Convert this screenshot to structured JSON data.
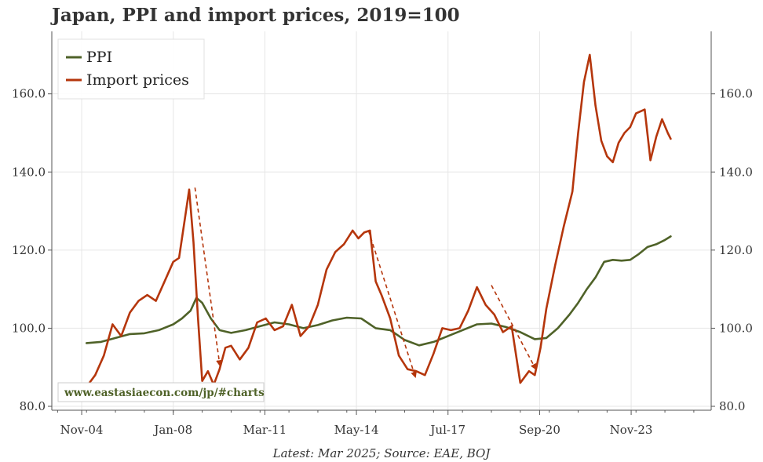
{
  "title": "Japan, PPI and import prices, 2019=100",
  "footer": "Latest: Mar 2025; Source: EAE, BOJ",
  "watermark": "www.eastasiaecon.com/jp/#charts",
  "colors": {
    "ppi": "#4f6228",
    "import": "#b5360c",
    "grid": "#e6e6e6",
    "axis": "#555555"
  },
  "chart_data": {
    "type": "line",
    "title": "Japan, PPI and import prices, 2019=100",
    "x_tick_labels": [
      "Nov-04",
      "Jan-08",
      "Mar-11",
      "May-14",
      "Jul-17",
      "Sep-20",
      "Nov-23"
    ],
    "x_ticks": [
      2004.833,
      2008.0,
      2011.167,
      2014.333,
      2017.5,
      2020.667,
      2023.833
    ],
    "xlim": [
      2003.8,
      2026.6
    ],
    "y_ticks": [
      80,
      100,
      120,
      140,
      160
    ],
    "y_tick_labels": [
      "80.0",
      "100.0",
      "120.0",
      "140.0",
      "160.0"
    ],
    "ylim": [
      79,
      176
    ],
    "right_axis_mirrors_left": true,
    "grid": true,
    "legend_position": "top-left",
    "series": [
      {
        "name": "PPI",
        "x": [
          2005.0,
          2005.5,
          2006.0,
          2006.5,
          2007.0,
          2007.5,
          2008.0,
          2008.3,
          2008.6,
          2008.8,
          2009.0,
          2009.3,
          2009.6,
          2010.0,
          2010.5,
          2011.0,
          2011.5,
          2012.0,
          2012.5,
          2013.0,
          2013.5,
          2014.0,
          2014.5,
          2015.0,
          2015.5,
          2016.0,
          2016.5,
          2017.0,
          2017.5,
          2018.0,
          2018.5,
          2019.0,
          2019.5,
          2020.0,
          2020.5,
          2020.9,
          2021.3,
          2021.7,
          2022.0,
          2022.3,
          2022.6,
          2022.9,
          2023.2,
          2023.5,
          2023.8,
          2024.1,
          2024.4,
          2024.7,
          2025.0,
          2025.2
        ],
        "values": [
          96.2,
          96.5,
          97.5,
          98.5,
          98.7,
          99.5,
          101.0,
          102.5,
          104.5,
          107.8,
          106.5,
          102.5,
          99.5,
          98.8,
          99.5,
          100.5,
          101.5,
          101.0,
          100.0,
          100.8,
          102.0,
          102.7,
          102.5,
          100.0,
          99.5,
          97.0,
          95.6,
          96.5,
          98.0,
          99.5,
          101.0,
          101.2,
          100.3,
          99.0,
          97.2,
          97.5,
          100.0,
          103.5,
          106.5,
          110.0,
          113.0,
          117.0,
          117.5,
          117.3,
          117.5,
          119.0,
          120.8,
          121.5,
          122.6,
          123.5
        ]
      },
      {
        "name": "Import prices",
        "x": [
          2005.0,
          2005.3,
          2005.6,
          2005.9,
          2006.2,
          2006.5,
          2006.8,
          2007.1,
          2007.4,
          2007.7,
          2008.0,
          2008.2,
          2008.4,
          2008.55,
          2008.7,
          2008.85,
          2009.0,
          2009.2,
          2009.4,
          2009.6,
          2009.8,
          2010.0,
          2010.3,
          2010.6,
          2010.9,
          2011.2,
          2011.5,
          2011.8,
          2012.1,
          2012.4,
          2012.7,
          2013.0,
          2013.3,
          2013.6,
          2013.9,
          2014.2,
          2014.4,
          2014.6,
          2014.8,
          2015.0,
          2015.2,
          2015.5,
          2015.8,
          2016.1,
          2016.4,
          2016.7,
          2017.0,
          2017.3,
          2017.6,
          2017.9,
          2018.2,
          2018.5,
          2018.8,
          2019.1,
          2019.4,
          2019.7,
          2020.0,
          2020.3,
          2020.5,
          2020.7,
          2020.9,
          2021.2,
          2021.5,
          2021.8,
          2022.0,
          2022.2,
          2022.4,
          2022.6,
          2022.8,
          2023.0,
          2023.2,
          2023.4,
          2023.6,
          2023.8,
          2024.0,
          2024.3,
          2024.5,
          2024.7,
          2024.9,
          2025.1,
          2025.2
        ],
        "values": [
          85.0,
          88.0,
          93.0,
          101.0,
          98.0,
          104.0,
          107.0,
          108.5,
          107.0,
          112.0,
          117.0,
          118.0,
          128.0,
          135.5,
          122.0,
          103.0,
          86.5,
          89.0,
          85.5,
          89.5,
          95.0,
          95.5,
          92.0,
          95.0,
          101.5,
          102.5,
          99.5,
          100.5,
          106.0,
          98.0,
          100.5,
          106.0,
          115.0,
          119.5,
          121.5,
          125.0,
          123.0,
          124.5,
          125.0,
          112.0,
          108.5,
          102.5,
          93.0,
          89.5,
          89.0,
          88.0,
          93.5,
          100.0,
          99.5,
          100.0,
          104.5,
          110.5,
          106.0,
          103.5,
          99.0,
          100.5,
          86.0,
          89.0,
          88.0,
          95.0,
          105.0,
          116.0,
          126.0,
          135.0,
          150.0,
          163.0,
          170.0,
          157.0,
          148.0,
          144.0,
          142.5,
          147.5,
          150.0,
          151.5,
          155.0,
          156.0,
          143.0,
          149.0,
          153.5,
          150.0,
          148.5
        ]
      }
    ],
    "annotations": [
      {
        "type": "dashed-arrow",
        "from": [
          2008.75,
          136
        ],
        "to": [
          2009.6,
          91
        ]
      },
      {
        "type": "dashed-arrow",
        "from": [
          2014.75,
          125
        ],
        "to": [
          2016.35,
          88
        ]
      },
      {
        "type": "dashed-arrow",
        "from": [
          2019.0,
          111
        ],
        "to": [
          2020.5,
          90
        ]
      }
    ]
  }
}
